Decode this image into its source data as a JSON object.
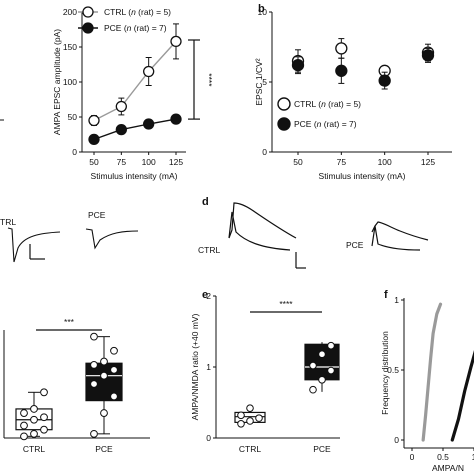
{
  "chart_data": [
    {
      "panel": "",
      "type": "line",
      "xlabel": "Stimulus intensity (mA)",
      "ylabel": "AMPA EPSC amplitude (pA)",
      "x_ticks": [
        "50",
        "75",
        "100",
        "125"
      ],
      "y_ticks": [
        "0",
        "50",
        "100",
        "150",
        "200"
      ],
      "ylim": [
        0,
        200
      ],
      "series": [
        {
          "name": "CTRL",
          "legend_suffix": " (rat) = 5)",
          "x": [
            50,
            75,
            100,
            125
          ],
          "y": [
            45,
            65,
            115,
            158
          ],
          "err": [
            7,
            12,
            20,
            25
          ],
          "marker": "open"
        },
        {
          "name": "PCE",
          "legend_suffix": " (rat) = 7)",
          "x": [
            50,
            75,
            100,
            125
          ],
          "y": [
            18,
            32,
            40,
            47
          ],
          "err": [
            3,
            4,
            5,
            5
          ],
          "marker": "filled"
        }
      ],
      "significance": "****"
    },
    {
      "panel": "b",
      "type": "scatter",
      "xlabel": "Stimulus intensity (mA)",
      "ylabel": "EPSC 1/CV²",
      "x_ticks": [
        "50",
        "75",
        "100",
        "125"
      ],
      "y_ticks": [
        "0",
        "5",
        "10"
      ],
      "ylim": [
        0,
        10
      ],
      "series": [
        {
          "name": "CTRL",
          "legend_suffix": " (rat) = 5)",
          "x": [
            50,
            75,
            100,
            125
          ],
          "y": [
            6.5,
            7.4,
            5.8,
            7.1
          ],
          "err": [
            0.8,
            0.7,
            0.3,
            0.6
          ],
          "marker": "open"
        },
        {
          "name": "PCE",
          "legend_suffix": " (rat) = 7)",
          "x": [
            50,
            75,
            100,
            125
          ],
          "y": [
            6.2,
            5.8,
            5.1,
            6.9
          ],
          "err": [
            0.6,
            0.9,
            0.6,
            0.5
          ],
          "marker": "filled"
        }
      ]
    },
    {
      "panel": "",
      "type": "box",
      "categories": [
        "CTRL",
        "PCE"
      ],
      "significance": "***",
      "groups": [
        {
          "name": "CTRL",
          "q1": 0.1,
          "median": 0.22,
          "q3": 0.35,
          "whisker_low": 0.02,
          "whisker_high": 0.55,
          "points": [
            0.02,
            0.05,
            0.1,
            0.15,
            0.22,
            0.25,
            0.3,
            0.35,
            0.55
          ]
        },
        {
          "name": "PCE",
          "q1": 0.45,
          "median": 0.75,
          "q3": 0.9,
          "whisker_low": 0.05,
          "whisker_high": 1.22,
          "points": [
            0.05,
            0.3,
            0.5,
            0.65,
            0.75,
            0.82,
            0.88,
            0.92,
            1.05,
            1.22
          ]
        }
      ]
    },
    {
      "panel": "e",
      "type": "box",
      "ylabel": "AMPA/NMDA ratio (+40 mV)",
      "y_ticks": [
        "0",
        "1",
        "2"
      ],
      "ylim": [
        0,
        2
      ],
      "categories": [
        "CTRL",
        "PCE"
      ],
      "significance": "****",
      "groups": [
        {
          "name": "CTRL",
          "q1": 0.22,
          "median": 0.3,
          "q3": 0.36,
          "whisker_low": 0.2,
          "whisker_high": 0.42,
          "points": [
            0.2,
            0.24,
            0.28,
            0.32,
            0.42
          ]
        },
        {
          "name": "PCE",
          "q1": 0.82,
          "median": 1.0,
          "q3": 1.32,
          "whisker_low": 0.65,
          "whisker_high": 1.35,
          "points": [
            0.68,
            0.82,
            0.95,
            1.02,
            1.18,
            1.3
          ]
        }
      ]
    },
    {
      "panel": "f",
      "type": "line",
      "ylabel": "Frequency distribution",
      "xlabel": "AMPA/N",
      "x_ticks": [
        "0",
        "0.5",
        "1"
      ],
      "y_ticks": [
        "0",
        "0.5",
        "1"
      ],
      "series": [
        {
          "name": "CTRL",
          "color": "#9a9a9a",
          "x": [
            0.18,
            0.22,
            0.26,
            0.3,
            0.34,
            0.4,
            0.46
          ],
          "y": [
            0.0,
            0.18,
            0.38,
            0.58,
            0.76,
            0.9,
            0.97
          ]
        },
        {
          "name": "PCE",
          "color": "#111111",
          "x": [
            0.65,
            0.75,
            0.85,
            0.95,
            1.05,
            1.15,
            1.3
          ],
          "y": [
            0.0,
            0.15,
            0.35,
            0.52,
            0.68,
            0.8,
            0.92
          ]
        }
      ]
    }
  ],
  "panels": {
    "c_labels": [
      "TRL",
      "PCE"
    ],
    "d_label": "d",
    "d_traces": [
      "CTRL",
      "PCE"
    ]
  }
}
